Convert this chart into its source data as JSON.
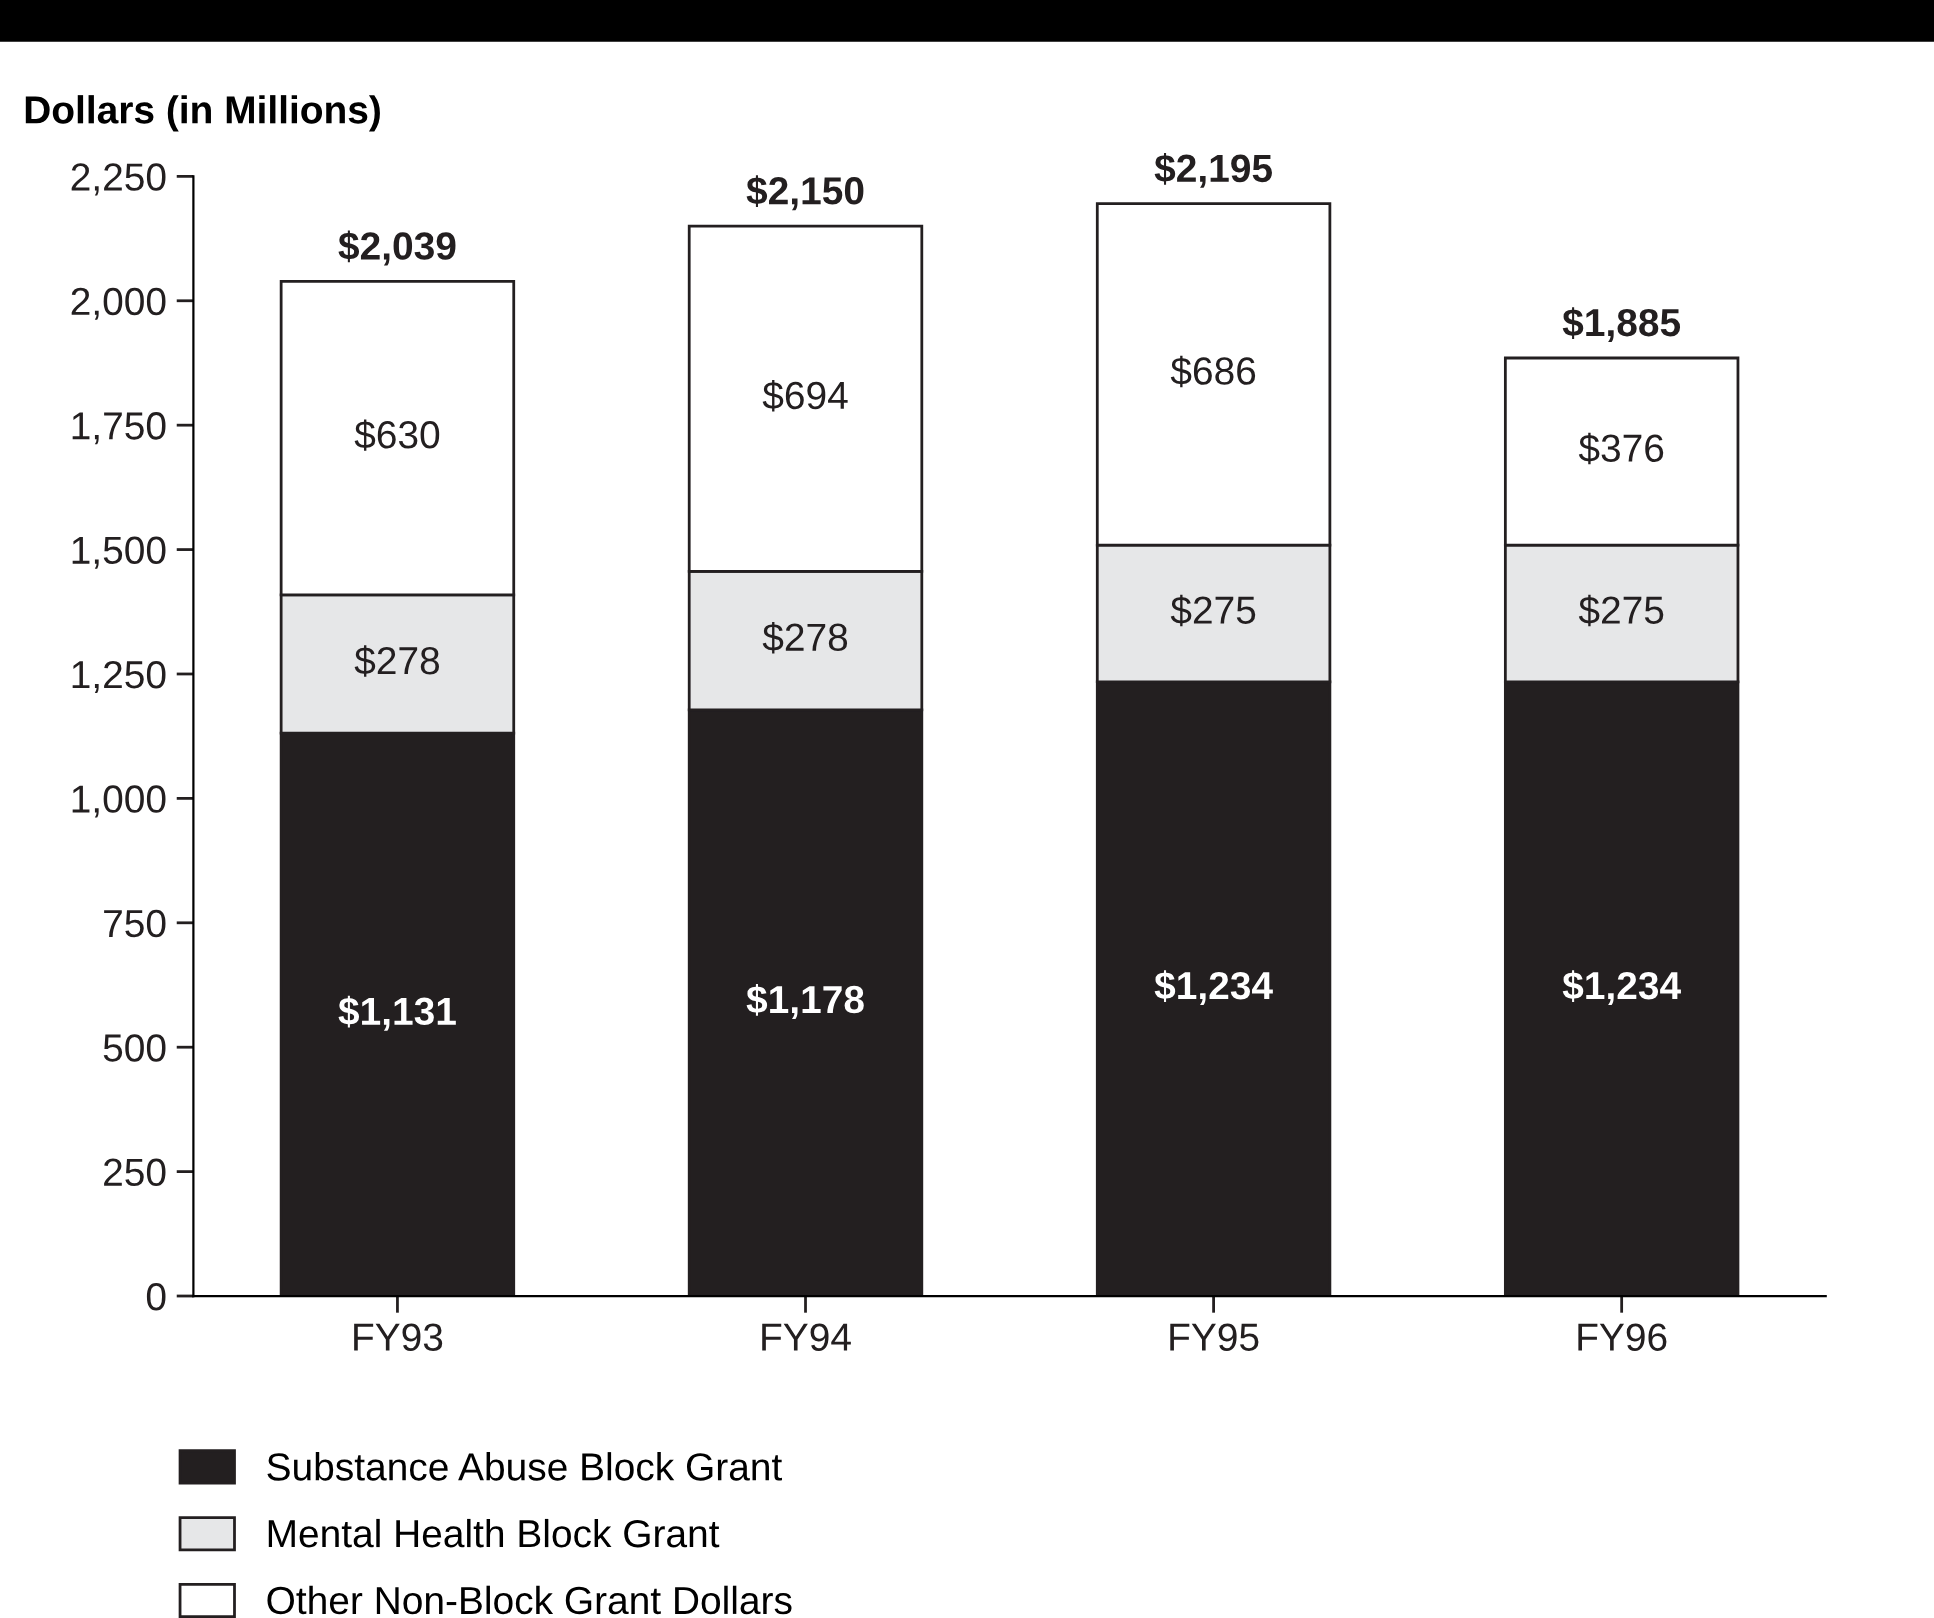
{
  "chart_data": {
    "type": "bar",
    "stacked": true,
    "ylabel": "Dollars (in Millions)",
    "categories": [
      "FY93",
      "FY94",
      "FY95",
      "FY96"
    ],
    "series": [
      {
        "name": "Substance Abuse Block Grant",
        "color": "#231f20",
        "values": [
          1131,
          1178,
          1234,
          1234
        ],
        "value_labels": [
          "$1,131",
          "$1,178",
          "$1,234",
          "$1,234"
        ]
      },
      {
        "name": "Mental Health Block Grant",
        "color": "#e6e7e8",
        "values": [
          278,
          278,
          275,
          275
        ],
        "value_labels": [
          "$278",
          "$278",
          "$275",
          "$275"
        ]
      },
      {
        "name": "Other Non-Block Grant Dollars",
        "color": "#ffffff",
        "values": [
          630,
          694,
          686,
          376
        ],
        "value_labels": [
          "$630",
          "$694",
          "$686",
          "$376"
        ]
      }
    ],
    "totals": [
      "$2,039",
      "$2,150",
      "$2,195",
      "$1,885"
    ],
    "ylim": [
      0,
      2250
    ],
    "yticks": [
      0,
      250,
      500,
      750,
      {
        "value": 1000,
        "label": "1,000"
      },
      {
        "value": 1250,
        "label": "1,250"
      },
      {
        "value": 1500,
        "label": "1,500"
      },
      {
        "value": 1750,
        "label": "1,750"
      },
      {
        "value": 2000,
        "label": "2,000"
      },
      {
        "value": 2250,
        "label": "2,250"
      }
    ],
    "grid": false,
    "legend": "bottom"
  }
}
